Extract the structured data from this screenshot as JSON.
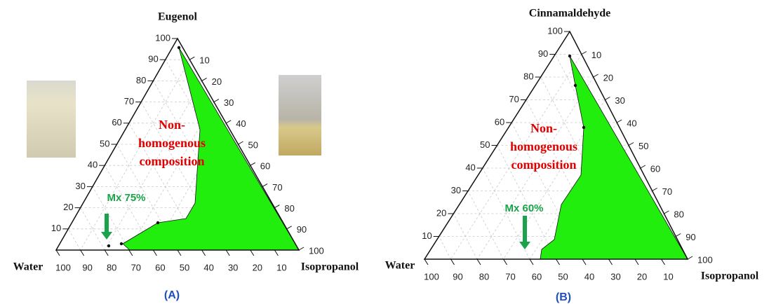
{
  "panels": [
    {
      "apex_label": "Eugenol",
      "left_label": "Water",
      "right_label": "Isopropanol",
      "region_label_lines": [
        "Non-",
        "homogenous",
        "composition"
      ],
      "marker_label": "Mx 75%",
      "caption": "(A)",
      "left_ticks": [
        10,
        20,
        30,
        40,
        50,
        60,
        70,
        80,
        90,
        100
      ],
      "right_ticks": [
        10,
        20,
        30,
        40,
        50,
        60,
        70,
        80,
        90,
        100
      ],
      "bottom_ticks": [
        100,
        90,
        80,
        70,
        60,
        50,
        40,
        30,
        20,
        10
      ]
    },
    {
      "apex_label": "Cinnamaldehyde",
      "left_label": "Water",
      "right_label": "Isopropanol",
      "region_label_lines": [
        "Non-",
        "homogenous",
        "composition"
      ],
      "marker_label": "Mx 60%",
      "caption": "(B)",
      "left_ticks": [
        10,
        20,
        30,
        40,
        50,
        60,
        70,
        80,
        90,
        100
      ],
      "right_ticks": [
        10,
        20,
        30,
        40,
        50,
        60,
        70,
        80,
        90,
        100
      ],
      "bottom_ticks": [
        100,
        90,
        80,
        70,
        60,
        50,
        40,
        30,
        20,
        10
      ]
    }
  ]
}
